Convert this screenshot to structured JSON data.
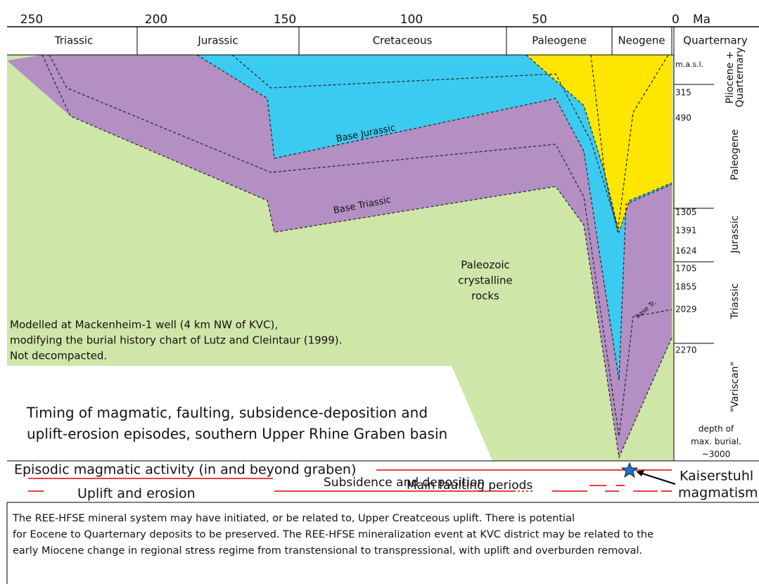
{
  "time_axis": {
    "ticks": [
      "250",
      "200",
      "150",
      "100",
      "50",
      "0"
    ],
    "unit": "Ma"
  },
  "periods": [
    "Triassic",
    "Jurassic",
    "Cretaceous",
    "Paleogene",
    "Neogene",
    "Quarternary"
  ],
  "depth_column": {
    "unit": "m.a.s.l.",
    "depths": [
      "315",
      "490",
      "1305",
      "1391",
      "1624",
      "1705",
      "1855",
      "2029",
      "2270"
    ],
    "units": [
      [
        "Pliocene +",
        "Quarternary"
      ],
      [
        "Paleogene"
      ],
      [
        "Jurassic"
      ],
      [
        "Triassic"
      ],
      [
        "\"Variscan\""
      ]
    ],
    "note": [
      "depth of",
      "max. burial.",
      "~3000"
    ]
  },
  "layer_labels": {
    "base_jurassic": "Base Jurassic",
    "base_triassic": "Base Triassic",
    "base_tr": "base Tr.",
    "basement": [
      "Paleozoic",
      "crystalline",
      "rocks"
    ]
  },
  "model_note": [
    "Modelled at Mackenheim-1 well (4 km NW of KVC),",
    "modifying the burial history chart of Lutz and Cleintaur (1999).",
    "Not decompacted."
  ],
  "title": [
    "Timing of magmatic, faulting, subsidence-deposition and",
    "uplift-erosion episodes, southern Upper Rhine Graben basin"
  ],
  "legend": {
    "magmatic": "Episodic magmatic activity (in and beyond graben)",
    "faulting": "Main faulting periods",
    "uplift": "Uplift and erosion",
    "subsidence": "Subsidence and deposition",
    "kaiserstuhl": [
      "Kaiserstuhl",
      "magmatism"
    ]
  },
  "caption": [
    "The REE-HFSE mineral system may have initiated, or be related to, Upper Creatceous uplift. There is potential",
    "for Eocene to Quarternary deposits to be preserved. The REE-HFSE mineralization event at KVC district may be related to the",
    "early Miocene change in regional stress regime from transtensional to transpressional, with uplift and overburden removal."
  ]
}
